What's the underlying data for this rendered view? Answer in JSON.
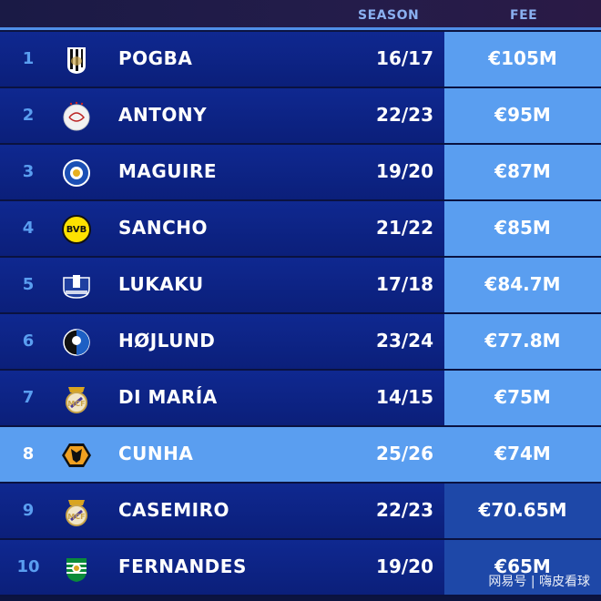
{
  "header": {
    "season": "SEASON",
    "fee": "FEE"
  },
  "rows": [
    {
      "rank": "1",
      "name": "POGBA",
      "season": "16/17",
      "fee": "€105M",
      "club_icon": "juventus-crest"
    },
    {
      "rank": "2",
      "name": "ANTONY",
      "season": "22/23",
      "fee": "€95M",
      "club_icon": "ajax-crest"
    },
    {
      "rank": "3",
      "name": "MAGUIRE",
      "season": "19/20",
      "fee": "€87M",
      "club_icon": "leicester-crest"
    },
    {
      "rank": "4",
      "name": "SANCHO",
      "season": "21/22",
      "fee": "€85M",
      "club_icon": "dortmund-crest"
    },
    {
      "rank": "5",
      "name": "LUKAKU",
      "season": "17/18",
      "fee": "€84.7M",
      "club_icon": "everton-crest"
    },
    {
      "rank": "6",
      "name": "HØJLUND",
      "season": "23/24",
      "fee": "€77.8M",
      "club_icon": "atalanta-crest"
    },
    {
      "rank": "7",
      "name": "DI MARÍA",
      "season": "14/15",
      "fee": "€75M",
      "club_icon": "real-madrid-crest"
    },
    {
      "rank": "8",
      "name": "CUNHA",
      "season": "25/26",
      "fee": "€74M",
      "club_icon": "wolves-crest",
      "highlighted": true
    },
    {
      "rank": "9",
      "name": "CASEMIRO",
      "season": "22/23",
      "fee": "€70.65M",
      "club_icon": "real-madrid-crest"
    },
    {
      "rank": "10",
      "name": "FERNANDES",
      "season": "19/20",
      "fee": "€65M",
      "club_icon": "sporting-crest"
    }
  ],
  "watermark": "网易号 | 嗨皮看球",
  "colors": {
    "row": "#0f2890",
    "fee_cell": "#5a9ef0",
    "fee_cell_dim": "#1e48a8",
    "highlight": "#5a9ef0"
  }
}
